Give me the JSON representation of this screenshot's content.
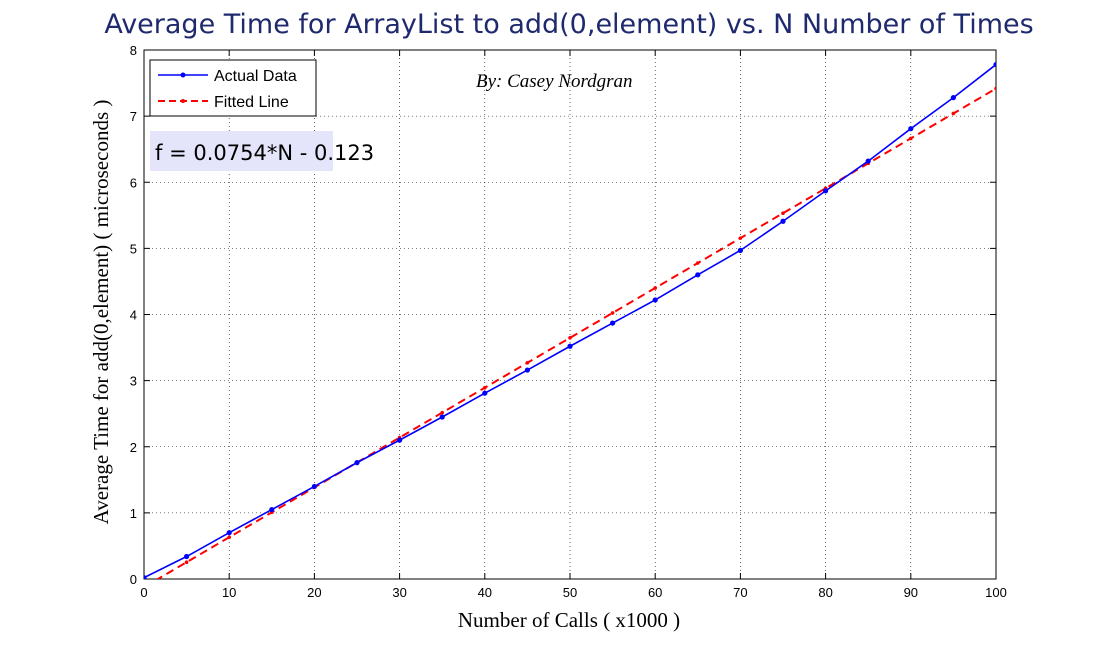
{
  "chart_data": {
    "type": "line",
    "title": "Average Time for ArrayList to  add(0,element)  vs.  N Number of Times",
    "xlabel": "Number of Calls ( x1000 )",
    "ylabel": "Average Time for add(0,element) ( microseconds )",
    "xlim": [
      0,
      100
    ],
    "ylim": [
      0,
      8
    ],
    "xticks": [
      0,
      10,
      20,
      30,
      40,
      50,
      60,
      70,
      80,
      90,
      100
    ],
    "yticks": [
      0,
      1,
      2,
      3,
      4,
      5,
      6,
      7,
      8
    ],
    "grid": true,
    "legend_position": "top-left",
    "series": [
      {
        "name": "Actual Data",
        "color": "#0000ff",
        "style": "solid",
        "marker": "dot",
        "x": [
          0,
          5,
          10,
          15,
          20,
          25,
          30,
          35,
          40,
          45,
          50,
          55,
          60,
          65,
          70,
          75,
          80,
          85,
          90,
          95,
          100
        ],
        "y": [
          0.02,
          0.34,
          0.7,
          1.05,
          1.4,
          1.76,
          2.1,
          2.45,
          2.81,
          3.16,
          3.52,
          3.87,
          4.22,
          4.6,
          4.97,
          5.41,
          5.87,
          6.32,
          6.81,
          7.28,
          7.78
        ]
      },
      {
        "name": "Fitted Line",
        "color": "#ff0000",
        "style": "dashed",
        "marker": "dot",
        "x": [
          0,
          5,
          10,
          15,
          20,
          25,
          30,
          35,
          40,
          45,
          50,
          55,
          60,
          65,
          70,
          75,
          80,
          85,
          90,
          95,
          100
        ],
        "y": [
          -0.123,
          0.254,
          0.631,
          1.008,
          1.385,
          1.762,
          2.139,
          2.516,
          2.893,
          3.27,
          3.647,
          4.024,
          4.401,
          4.778,
          5.155,
          5.532,
          5.909,
          6.286,
          6.663,
          7.04,
          7.417
        ]
      }
    ],
    "annotations": {
      "byline": "By: Casey Nordgran",
      "equation": "f = 0.0754*N - 0.123",
      "equation_bg": "#e4e4fa"
    }
  }
}
